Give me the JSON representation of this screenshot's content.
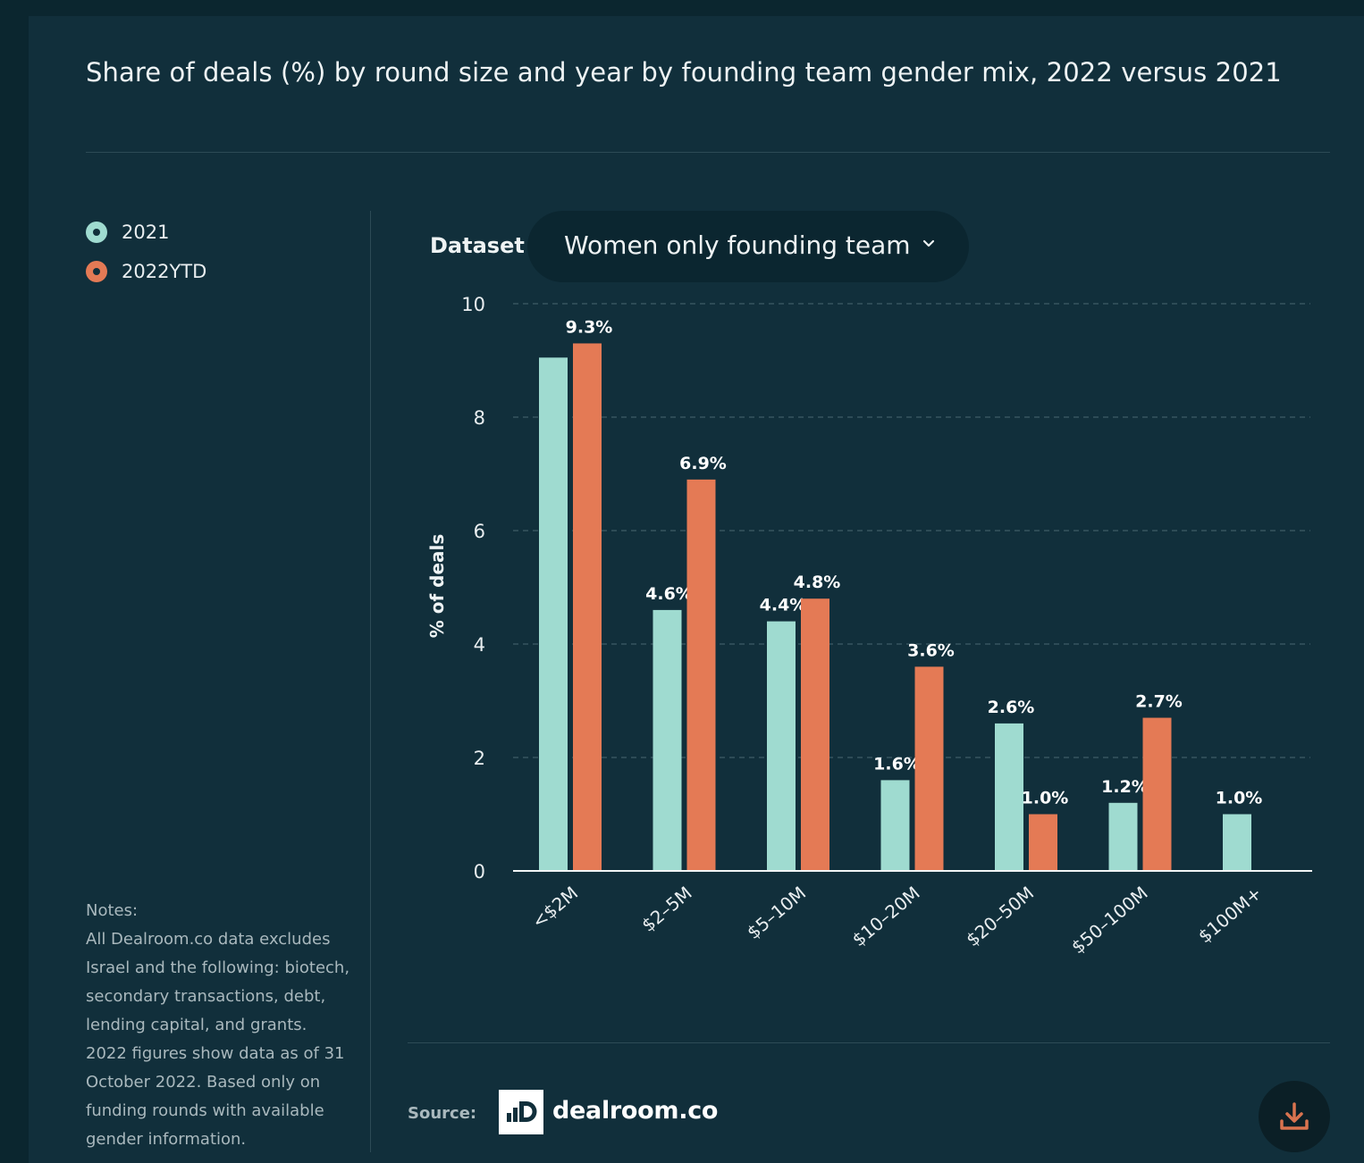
{
  "title": "Share of deals (%) by round size and year by founding team gender mix, 2022 versus 2021",
  "legend": [
    {
      "label": "2021",
      "color": "#9fdbd0"
    },
    {
      "label": "2022YTD",
      "color": "#e47a55"
    }
  ],
  "dataset": {
    "label": "Dataset",
    "value": "Women only founding team",
    "icon": "chevron-down-icon"
  },
  "notes": {
    "heading": "Notes:",
    "text": "All Dealroom.co data excludes Israel and the following: biotech, secondary transactions, debt, lending capital, and grants. 2022 figures show data as of 31 October 2022. Based only on funding rounds with available gender information."
  },
  "footer": {
    "source_label": "Source:",
    "logo_text": "dealroom.co",
    "download_icon": "download-icon"
  },
  "chart_data": {
    "type": "bar",
    "ylabel": "% of deals",
    "ylim": [
      0,
      10
    ],
    "yticks": [
      0,
      2,
      4,
      6,
      8,
      10
    ],
    "grid": true,
    "categories": [
      "<$2M",
      "$2–5M",
      "$5–10M",
      "$10–20M",
      "$20–50M",
      "$50–100M",
      "$100M+"
    ],
    "series": [
      {
        "name": "2021",
        "color": "#9fdbd0",
        "values": [
          9.05,
          4.6,
          4.4,
          1.6,
          2.6,
          1.2,
          1.0
        ],
        "labels": [
          null,
          "4.6%",
          "4.4%",
          "1.6%",
          "2.6%",
          "1.2%",
          "1.0%"
        ]
      },
      {
        "name": "2022YTD",
        "color": "#e47a55",
        "values": [
          9.3,
          6.9,
          4.8,
          3.6,
          1.0,
          2.7,
          null
        ],
        "labels": [
          "9.3%",
          "6.9%",
          "4.8%",
          "3.6%",
          "1.0%",
          "2.7%",
          null
        ]
      }
    ]
  }
}
